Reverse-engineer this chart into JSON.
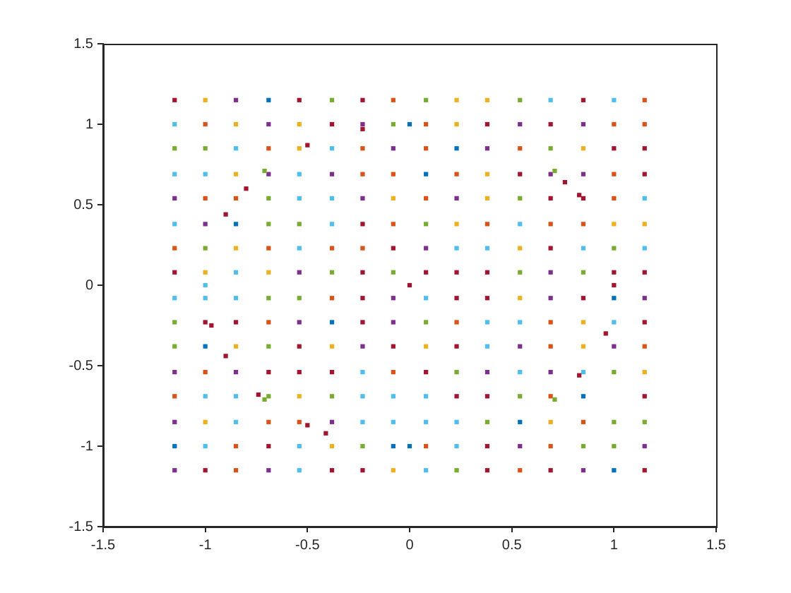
{
  "chart_data": {
    "type": "scatter",
    "xlim": [
      -1.5,
      1.5
    ],
    "ylim": [
      -1.5,
      1.5
    ],
    "xticks": [
      -1.5,
      -1,
      -0.5,
      0,
      0.5,
      1,
      1.5
    ],
    "yticks": [
      -1.5,
      -1,
      -0.5,
      0,
      0.5,
      1,
      1.5
    ],
    "grid": false,
    "legend": false,
    "marker": "square",
    "series": [
      {
        "x": [
          -1.15,
          -1,
          -0.85,
          -0.69,
          -0.54,
          -0.38,
          -0.23,
          -0.08,
          0.08,
          0.23,
          0.38,
          0.54,
          0.69,
          0.85,
          1,
          1.15,
          -1.15,
          -1,
          -0.85,
          -0.69,
          -0.54,
          -0.38,
          -0.23,
          -0.08,
          0.08,
          0.23,
          0.38,
          0.54,
          0.69,
          0.85,
          1,
          1.15,
          -1.15,
          -1,
          -0.85,
          -0.69,
          -0.54,
          -0.38,
          -0.23,
          -0.08,
          0.08,
          0.23,
          0.38,
          0.54,
          0.69,
          0.85,
          1,
          1.15,
          -1.15,
          -1,
          -0.85,
          -0.69,
          -0.54,
          -0.38,
          -0.23,
          -0.08,
          0.08,
          0.23,
          0.38,
          0.54,
          0.69,
          0.85,
          1,
          1.15,
          -1.15,
          -1,
          -0.85,
          -0.69,
          -0.54,
          -0.38,
          -0.23,
          -0.08,
          0.08,
          0.23,
          0.38,
          0.54,
          0.69,
          0.85,
          1,
          1.15,
          -1.15,
          -1,
          -0.85,
          -0.69,
          -0.54,
          -0.38,
          -0.23,
          -0.08,
          0.08,
          0.23,
          0.38,
          0.54,
          0.69,
          0.85,
          1,
          1.15,
          -1.15,
          -1,
          -0.85,
          -0.69,
          -0.54,
          -0.38,
          -0.23,
          -0.08,
          0.08,
          0.23,
          0.38,
          0.54,
          0.69,
          0.85,
          1,
          1.15,
          -1.15,
          -1,
          -0.85,
          -0.69,
          -0.54,
          -0.38,
          -0.23,
          -0.08,
          0.08,
          0.23,
          0.38,
          0.54,
          0.69,
          0.85,
          1,
          1.15,
          -1.15,
          -1,
          -0.85,
          -0.69,
          -0.54,
          -0.38,
          -0.23,
          -0.08,
          0.08,
          0.23,
          0.38,
          0.54,
          0.69,
          0.85,
          1,
          1.15,
          -1.15,
          -1,
          -0.85,
          -0.69,
          -0.54,
          -0.38,
          -0.23,
          -0.08,
          0.08,
          0.23,
          0.38,
          0.54,
          0.69,
          0.85,
          1,
          1.15,
          -1.15,
          -1,
          -0.85,
          -0.69,
          -0.54,
          -0.38,
          -0.23,
          -0.08,
          0.08,
          0.23,
          0.38,
          0.54,
          0.69,
          0.85,
          1,
          1.15,
          -1.15,
          -1,
          -0.85,
          -0.69,
          -0.54,
          -0.38,
          -0.23,
          -0.08,
          0.08,
          0.23,
          0.38,
          0.54,
          0.69,
          0.85,
          1,
          1.15,
          -1.15,
          -1,
          -0.85,
          -0.69,
          -0.54,
          -0.38,
          -0.23,
          -0.08,
          0.08,
          0.23,
          0.38,
          0.54,
          0.69,
          0.85,
          1.15,
          -1.15,
          -1,
          -0.85,
          -0.69,
          -0.54,
          -0.38,
          -0.23,
          -0.08,
          0.08,
          0.23,
          0.38,
          0.54,
          0.69,
          0.85,
          1,
          1.15,
          -1.15,
          -1,
          -0.85,
          -0.69,
          -0.54,
          -0.38,
          -0.23,
          -0.08,
          0.08,
          0.23,
          0.38,
          0.54,
          0.69,
          0.85,
          1,
          1.15,
          -1.15,
          -1,
          -0.85,
          -0.69,
          -0.54,
          -0.38,
          -0.23,
          -0.08,
          0.08,
          0.23,
          0.38,
          0.54,
          0.69,
          0.85,
          1,
          1.15,
          0,
          0,
          0,
          -1,
          1,
          -0.23,
          -0.5,
          -0.71,
          -0.8,
          -0.9,
          0.71,
          0.76,
          0.83,
          -0.97,
          -0.9,
          -0.74,
          -0.71,
          -0.5,
          -0.41,
          0.96,
          0.83,
          0.71
        ],
        "values": [
          1.15,
          1.15,
          1.15,
          1.15,
          1.15,
          1.15,
          1.15,
          1.15,
          1.15,
          1.15,
          1.15,
          1.15,
          1.15,
          1.15,
          1.15,
          1.15,
          1,
          1,
          1,
          1,
          1,
          1,
          1,
          1,
          1,
          1,
          1,
          1,
          1,
          1,
          1,
          1,
          0.85,
          0.85,
          0.85,
          0.85,
          0.85,
          0.85,
          0.85,
          0.85,
          0.85,
          0.85,
          0.85,
          0.85,
          0.85,
          0.85,
          0.85,
          0.85,
          0.69,
          0.69,
          0.69,
          0.69,
          0.69,
          0.69,
          0.69,
          0.69,
          0.69,
          0.69,
          0.69,
          0.69,
          0.69,
          0.69,
          0.69,
          0.69,
          0.54,
          0.54,
          0.54,
          0.54,
          0.54,
          0.54,
          0.54,
          0.54,
          0.54,
          0.54,
          0.54,
          0.54,
          0.54,
          0.54,
          0.54,
          0.54,
          0.38,
          0.38,
          0.38,
          0.38,
          0.38,
          0.38,
          0.38,
          0.38,
          0.38,
          0.38,
          0.38,
          0.38,
          0.38,
          0.38,
          0.38,
          0.38,
          0.23,
          0.23,
          0.23,
          0.23,
          0.23,
          0.23,
          0.23,
          0.23,
          0.23,
          0.23,
          0.23,
          0.23,
          0.23,
          0.23,
          0.23,
          0.23,
          0.08,
          0.08,
          0.08,
          0.08,
          0.08,
          0.08,
          0.08,
          0.08,
          0.08,
          0.08,
          0.08,
          0.08,
          0.08,
          0.08,
          0.08,
          0.08,
          -0.08,
          -0.08,
          -0.08,
          -0.08,
          -0.08,
          -0.08,
          -0.08,
          -0.08,
          -0.08,
          -0.08,
          -0.08,
          -0.08,
          -0.08,
          -0.08,
          -0.08,
          -0.08,
          -0.23,
          -0.23,
          -0.23,
          -0.23,
          -0.23,
          -0.23,
          -0.23,
          -0.23,
          -0.23,
          -0.23,
          -0.23,
          -0.23,
          -0.23,
          -0.23,
          -0.23,
          -0.23,
          -0.38,
          -0.38,
          -0.38,
          -0.38,
          -0.38,
          -0.38,
          -0.38,
          -0.38,
          -0.38,
          -0.38,
          -0.38,
          -0.38,
          -0.38,
          -0.38,
          -0.38,
          -0.38,
          -0.54,
          -0.54,
          -0.54,
          -0.54,
          -0.54,
          -0.54,
          -0.54,
          -0.54,
          -0.54,
          -0.54,
          -0.54,
          -0.54,
          -0.54,
          -0.54,
          -0.54,
          -0.54,
          -0.69,
          -0.69,
          -0.69,
          -0.69,
          -0.69,
          -0.69,
          -0.69,
          -0.69,
          -0.69,
          -0.69,
          -0.69,
          -0.69,
          -0.69,
          -0.69,
          -0.69,
          -0.85,
          -0.85,
          -0.85,
          -0.85,
          -0.85,
          -0.85,
          -0.85,
          -0.85,
          -0.85,
          -0.85,
          -0.85,
          -0.85,
          -0.85,
          -0.85,
          -0.85,
          -0.85,
          -1,
          -1,
          -1,
          -1,
          -1,
          -1,
          -1,
          -1,
          -1,
          -1,
          -1,
          -1,
          -1,
          -1,
          -1,
          -1,
          -1.15,
          -1.15,
          -1.15,
          -1.15,
          -1.15,
          -1.15,
          -1.15,
          -1.15,
          -1.15,
          -1.15,
          -1.15,
          -1.15,
          -1.15,
          -1.15,
          -1.15,
          -1.15,
          0,
          1,
          -1,
          0,
          0,
          0.97,
          0.87,
          0.71,
          0.6,
          0.44,
          0.71,
          0.64,
          0.56,
          -0.25,
          -0.44,
          -0.68,
          -0.71,
          -0.87,
          -0.92,
          -0.3,
          -0.56,
          -0.71
        ],
        "colors": [
          "#a2142f",
          "#edb120",
          "#7e2f8e",
          "#0072bd",
          "#a2142f",
          "#77ac30",
          "#a2142f",
          "#d95319",
          "#77ac30",
          "#edb120",
          "#edb120",
          "#77ac30",
          "#4dbeee",
          "#a2142f",
          "#4dbeee",
          "#d95319",
          "#4dbeee",
          "#d95319",
          "#edb120",
          "#7e2f8e",
          "#edb120",
          "#a2142f",
          "#7e2f8e",
          "#77ac30",
          "#d95319",
          "#edb120",
          "#a2142f",
          "#7e2f8e",
          "#a2142f",
          "#7e2f8e",
          "#d95319",
          "#d95319",
          "#77ac30",
          "#77ac30",
          "#4dbeee",
          "#d95319",
          "#edb120",
          "#4dbeee",
          "#d95319",
          "#7e2f8e",
          "#d95319",
          "#0072bd",
          "#7e2f8e",
          "#d95319",
          "#77ac30",
          "#edb120",
          "#a2142f",
          "#a2142f",
          "#4dbeee",
          "#4dbeee",
          "#edb120",
          "#7e2f8e",
          "#4dbeee",
          "#7e2f8e",
          "#d95319",
          "#d95319",
          "#0072bd",
          "#d95319",
          "#edb120",
          "#a2142f",
          "#7e2f8e",
          "#7e2f8e",
          "#d95319",
          "#a2142f",
          "#7e2f8e",
          "#d95319",
          "#d95319",
          "#77ac30",
          "#4dbeee",
          "#4dbeee",
          "#7e2f8e",
          "#edb120",
          "#d95319",
          "#7e2f8e",
          "#edb120",
          "#77ac30",
          "#a2142f",
          "#a2142f",
          "#d95319",
          "#4dbeee",
          "#4dbeee",
          "#7e2f8e",
          "#0072bd",
          "#77ac30",
          "#77ac30",
          "#4dbeee",
          "#a2142f",
          "#d95319",
          "#77ac30",
          "#edb120",
          "#d95319",
          "#4dbeee",
          "#d95319",
          "#d95319",
          "#edb120",
          "#edb120",
          "#d95319",
          "#77ac30",
          "#edb120",
          "#d95319",
          "#4dbeee",
          "#d95319",
          "#d95319",
          "#a2142f",
          "#7e2f8e",
          "#4dbeee",
          "#4dbeee",
          "#edb120",
          "#a2142f",
          "#4dbeee",
          "#77ac30",
          "#4dbeee",
          "#a2142f",
          "#edb120",
          "#4dbeee",
          "#edb120",
          "#7e2f8e",
          "#77ac30",
          "#a2142f",
          "#77ac30",
          "#a2142f",
          "#a2142f",
          "#a2142f",
          "#77ac30",
          "#7e2f8e",
          "#77ac30",
          "#a2142f",
          "#a2142f",
          "#4dbeee",
          "#4dbeee",
          "#4dbeee",
          "#77ac30",
          "#77ac30",
          "#d95319",
          "#a2142f",
          "#7e2f8e",
          "#4dbeee",
          "#a2142f",
          "#a2142f",
          "#edb120",
          "#7e2f8e",
          "#a2142f",
          "#0072bd",
          "#7e2f8e",
          "#77ac30",
          "#a2142f",
          "#a2142f",
          "#d95319",
          "#7e2f8e",
          "#0072bd",
          "#a2142f",
          "#7e2f8e",
          "#77ac30",
          "#d95319",
          "#4dbeee",
          "#4dbeee",
          "#d95319",
          "#edb120",
          "#4dbeee",
          "#a2142f",
          "#77ac30",
          "#0072bd",
          "#edb120",
          "#77ac30",
          "#a2142f",
          "#edb120",
          "#7e2f8e",
          "#a2142f",
          "#edb120",
          "#a2142f",
          "#4dbeee",
          "#7e2f8e",
          "#d95319",
          "#edb120",
          "#7e2f8e",
          "#d95319",
          "#7e2f8e",
          "#d95319",
          "#7e2f8e",
          "#a2142f",
          "#a2142f",
          "#a2142f",
          "#4dbeee",
          "#d95319",
          "#a2142f",
          "#77ac30",
          "#7e2f8e",
          "#4dbeee",
          "#7e2f8e",
          "#4dbeee",
          "#77ac30",
          "#edb120",
          "#d95319",
          "#4dbeee",
          "#4dbeee",
          "#77ac30",
          "#edb120",
          "#77ac30",
          "#4dbeee",
          "#4dbeee",
          "#4dbeee",
          "#a2142f",
          "#a2142f",
          "#77ac30",
          "#d95319",
          "#0072bd",
          "#a2142f",
          "#7e2f8e",
          "#edb120",
          "#4dbeee",
          "#d95319",
          "#d95319",
          "#7e2f8e",
          "#4dbeee",
          "#4dbeee",
          "#4dbeee",
          "#4dbeee",
          "#77ac30",
          "#0072bd",
          "#edb120",
          "#d95319",
          "#77ac30",
          "#77ac30",
          "#0072bd",
          "#4dbeee",
          "#d95319",
          "#a2142f",
          "#4dbeee",
          "#edb120",
          "#77ac30",
          "#0072bd",
          "#d95319",
          "#4dbeee",
          "#a2142f",
          "#7e2f8e",
          "#d95319",
          "#77ac30",
          "#77ac30",
          "#7e2f8e",
          "#7e2f8e",
          "#a2142f",
          "#d95319",
          "#7e2f8e",
          "#4dbeee",
          "#a2142f",
          "#a2142f",
          "#edb120",
          "#4dbeee",
          "#77ac30",
          "#a2142f",
          "#d95319",
          "#a2142f",
          "#7e2f8e",
          "#0072bd",
          "#a2142f",
          "#a2142f",
          "#0072bd",
          "#0072bd",
          "#4dbeee",
          "#a2142f",
          "#a2142f",
          "#a2142f",
          "#77ac30",
          "#a2142f",
          "#a2142f",
          "#77ac30",
          "#a2142f",
          "#a2142f",
          "#a2142f",
          "#a2142f",
          "#a2142f",
          "#77ac30",
          "#a2142f",
          "#a2142f",
          "#a2142f",
          "#a2142f",
          "#77ac30"
        ]
      }
    ]
  }
}
